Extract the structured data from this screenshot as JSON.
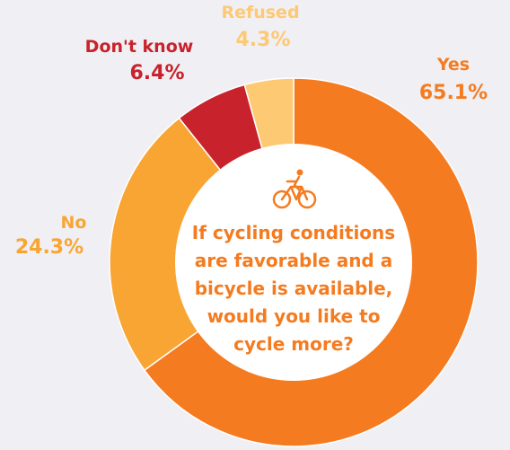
{
  "chart_data": {
    "type": "donut",
    "categories": [
      "Yes",
      "No",
      "Don't know",
      "Refused"
    ],
    "values": [
      65.1,
      24.3,
      6.4,
      4.3
    ],
    "value_labels": [
      "65.1%",
      "24.3%",
      "6.4%",
      "4.3%"
    ],
    "colors": [
      "#f47b20",
      "#f9a533",
      "#c8232c",
      "#fdc973"
    ],
    "center_text": [
      "If cycling conditions",
      "are favorable and a",
      "bicycle is available,",
      "would you like to",
      "cycle more?"
    ]
  }
}
